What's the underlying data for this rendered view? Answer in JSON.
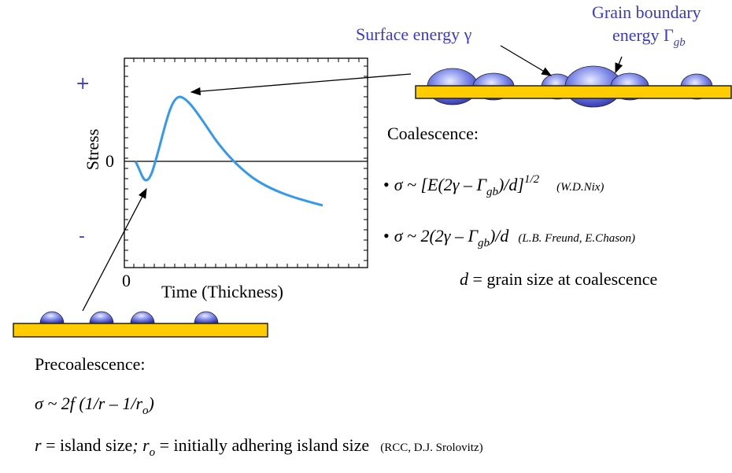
{
  "labels": {
    "surface_energy": "Surface energy γ",
    "grain_boundary": [
      "Grain boundary",
      "energy Γ",
      "gb"
    ]
  },
  "axes": {
    "plus": "+",
    "minus": "-",
    "y_label": "Stress",
    "y_zero": "0",
    "x_zero": "0",
    "x_label": "Time (Thickness)"
  },
  "coalescence": {
    "heading": "Coalescence:",
    "nix": [
      "•",
      "σ ~ [E(2γ – Γ",
      "gb",
      ")/d]",
      "1/2",
      "(W.D.Nix)"
    ],
    "freund": [
      "•",
      "σ ~ 2(2γ – Γ",
      "gb",
      ")/d",
      "(L.B. Freund, E.Chason)"
    ],
    "note": [
      "d",
      " = grain size at coalescence"
    ]
  },
  "precoalescence": {
    "heading": "Precoalescence:",
    "formula": [
      "σ ~ 2f (1/r – 1/r",
      "o",
      ")"
    ],
    "note": [
      "r",
      " = island size",
      ";",
      " r",
      "o",
      " = initially adhering island size",
      "(RCC, D.J. Srolovitz)"
    ]
  }
}
